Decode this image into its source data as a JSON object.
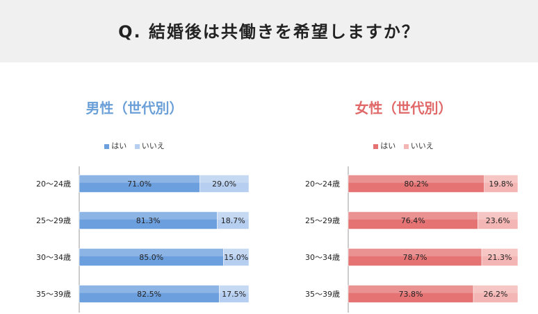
{
  "header": {
    "title": "Q. 結婚後は共働きを希望しますか？"
  },
  "chart_data": [
    {
      "type": "bar",
      "orientation": "horizontal",
      "stacked": "percent",
      "title": "男性（世代別）",
      "title_color": "#6a9fd8",
      "categories": [
        "20〜24歳",
        "25〜29歳",
        "30〜34歳",
        "35〜39歳"
      ],
      "series": [
        {
          "name": "はい",
          "values": [
            71.0,
            81.3,
            85.0,
            82.5
          ],
          "color": "#6c9fde",
          "labels": [
            "71.0%",
            "81.3%",
            "85.0%",
            "82.5%"
          ]
        },
        {
          "name": "いいえ",
          "values": [
            29.0,
            18.7,
            15.0,
            17.5
          ],
          "color": "#b6cff0",
          "labels": [
            "29.0%",
            "18.7%",
            "15.0%",
            "17.5%"
          ]
        }
      ],
      "xlim": [
        0,
        100
      ],
      "legend": "top"
    },
    {
      "type": "bar",
      "orientation": "horizontal",
      "stacked": "percent",
      "title": "女性（世代別）",
      "title_color": "#e06868",
      "categories": [
        "20〜24歳",
        "25〜29歳",
        "30〜34歳",
        "35〜39歳"
      ],
      "series": [
        {
          "name": "はい",
          "values": [
            80.2,
            76.4,
            78.7,
            73.8
          ],
          "color": "#e57373",
          "labels": [
            "80.2%",
            "76.4%",
            "78.7%",
            "73.8%"
          ]
        },
        {
          "name": "いいえ",
          "values": [
            19.8,
            23.6,
            21.3,
            26.2
          ],
          "color": "#f4b6b4",
          "labels": [
            "19.8%",
            "23.6%",
            "21.3%",
            "26.2%"
          ]
        }
      ],
      "xlim": [
        0,
        100
      ],
      "legend": "top"
    }
  ]
}
